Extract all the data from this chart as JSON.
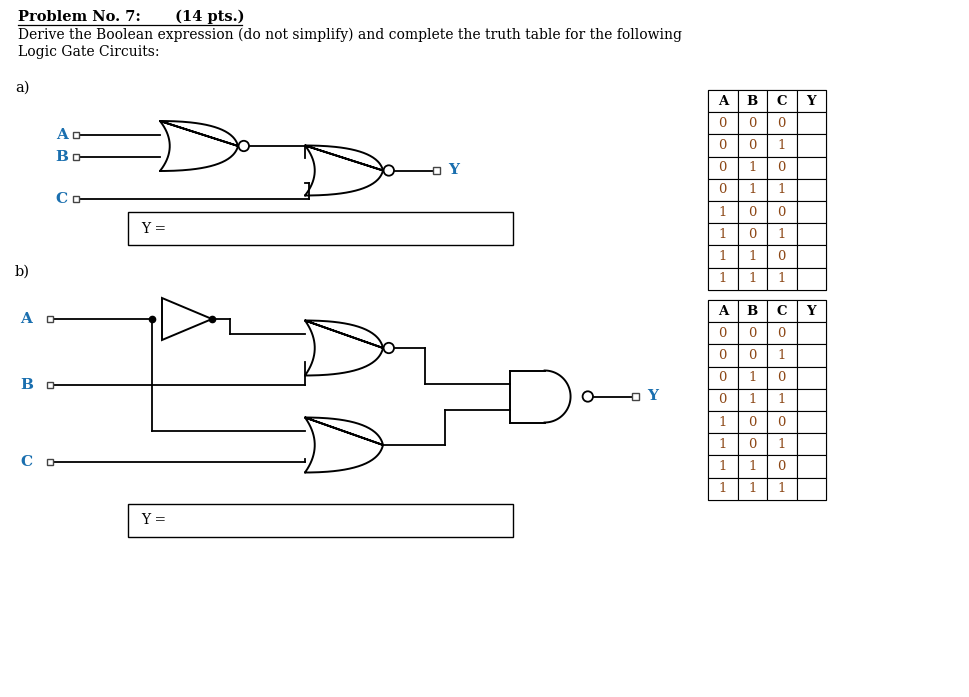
{
  "title_bold": "Problem No. 7:",
  "title_pts": " (14 pts.)",
  "line1": "Derive the Boolean expression (do not simplify) and complete the truth table for the following",
  "line2": "Logic Gate Circuits:",
  "label_a": "a)",
  "label_b": "b)",
  "input_color": "#1a6faf",
  "line_color": "#000000",
  "bg_color": "#ffffff",
  "truth_table_rows": [
    [
      0,
      0,
      0
    ],
    [
      0,
      0,
      1
    ],
    [
      0,
      1,
      0
    ],
    [
      0,
      1,
      1
    ],
    [
      1,
      0,
      0
    ],
    [
      1,
      0,
      1
    ],
    [
      1,
      1,
      0
    ],
    [
      1,
      1,
      1
    ]
  ],
  "table_headers": [
    "A",
    "B",
    "C",
    "Y"
  ]
}
